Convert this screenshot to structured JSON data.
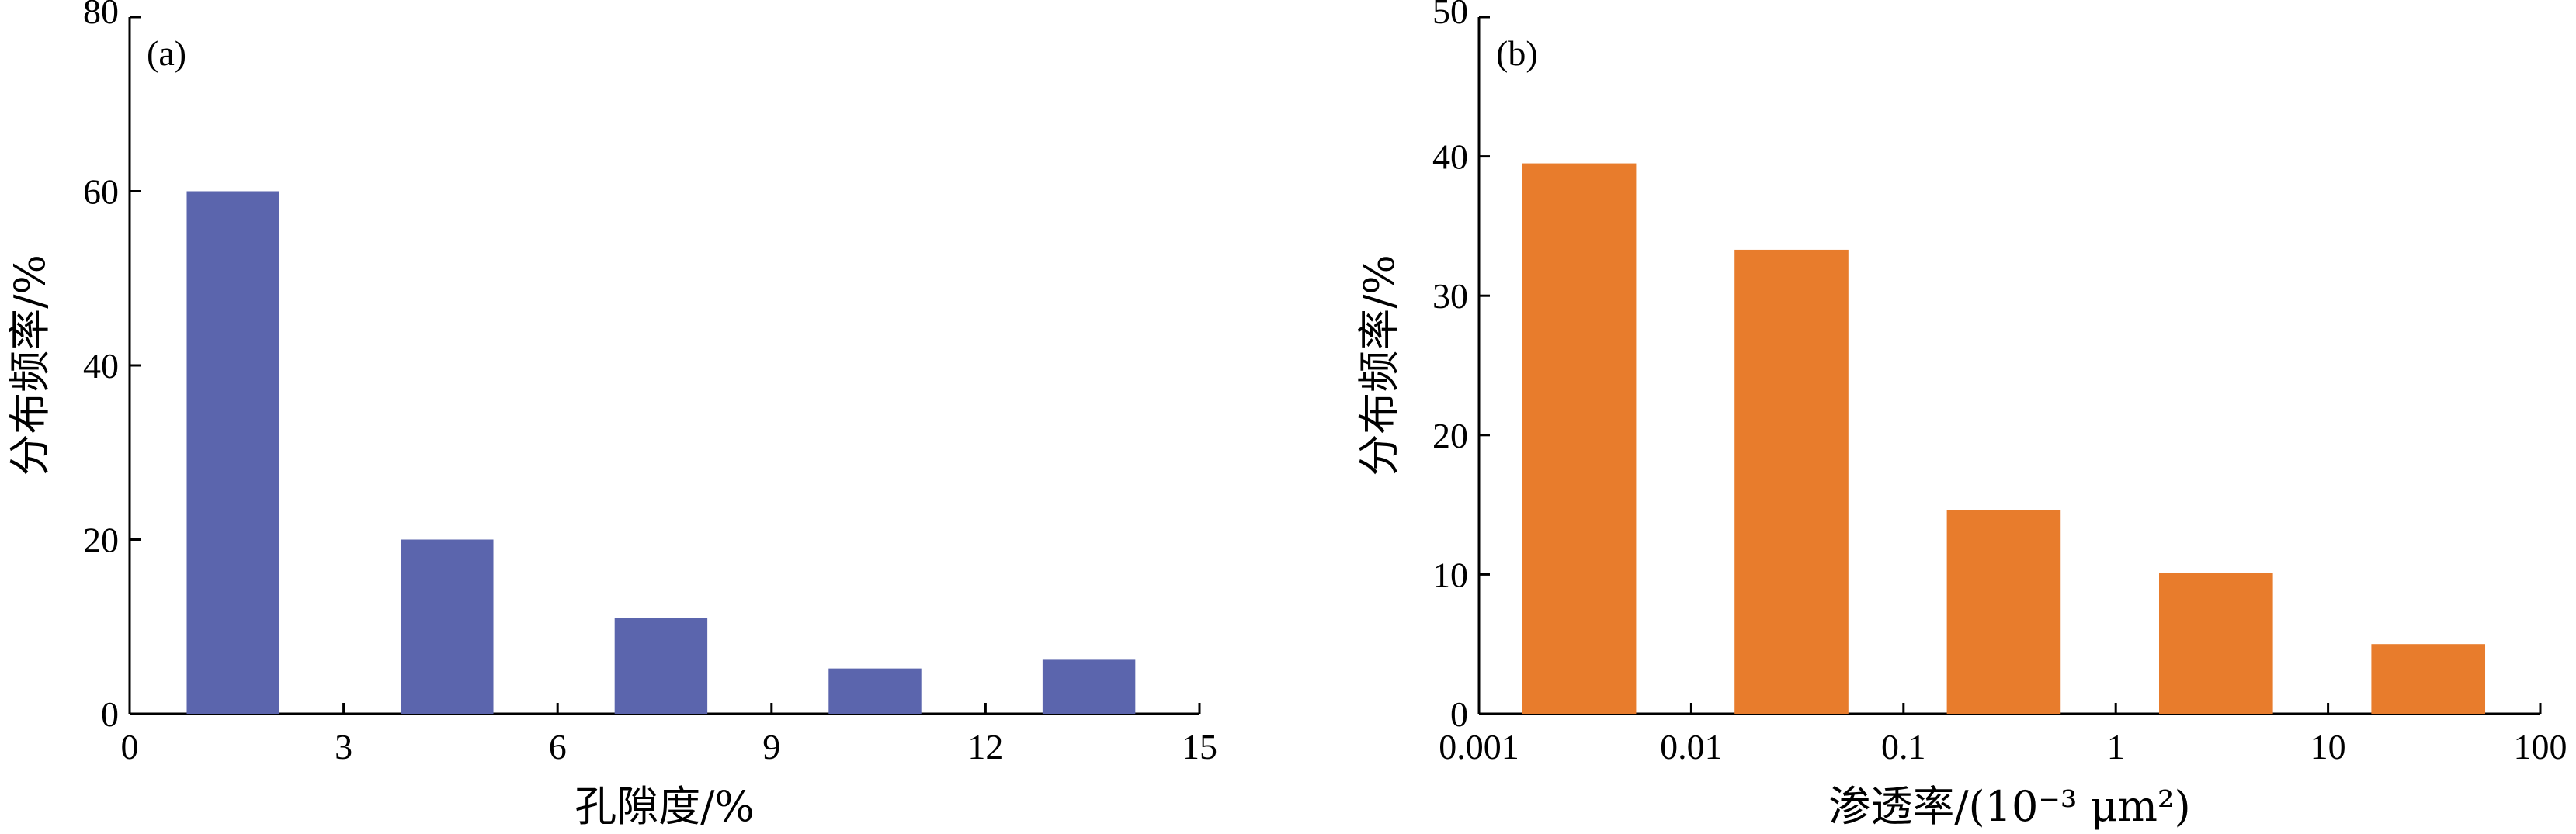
{
  "chart_data": [
    {
      "type": "bar",
      "panel_label": "(a)",
      "xlabel": "孔隙度/%",
      "ylabel": "分布频率/%",
      "xlim": [
        0,
        15
      ],
      "ylim": [
        0,
        80
      ],
      "x_ticks": [
        0,
        3,
        6,
        9,
        12,
        15
      ],
      "y_ticks": [
        0,
        20,
        40,
        60,
        80
      ],
      "bars": [
        {
          "x_start": 0.8,
          "x_end": 2.1,
          "value": 60
        },
        {
          "x_start": 3.8,
          "x_end": 5.1,
          "value": 20
        },
        {
          "x_start": 6.8,
          "x_end": 8.1,
          "value": 11
        },
        {
          "x_start": 9.8,
          "x_end": 11.1,
          "value": 5.2
        },
        {
          "x_start": 12.8,
          "x_end": 14.1,
          "value": 6.2
        }
      ],
      "color": "#5b65ad",
      "grid": false
    },
    {
      "type": "bar",
      "panel_label": "(b)",
      "xlabel": "渗透率/(10⁻³ μm²)",
      "ylabel": "分布频率/%",
      "x_scale": "log",
      "xlim": [
        0.001,
        100
      ],
      "ylim": [
        0,
        50
      ],
      "x_ticks": [
        0.001,
        0.01,
        0.1,
        1,
        10,
        100
      ],
      "x_tick_labels": [
        "0.001",
        "0.01",
        "0.1",
        "1",
        "10",
        "100"
      ],
      "y_ticks": [
        0,
        10,
        20,
        30,
        40,
        50
      ],
      "bars": [
        {
          "x_start": 0.0016,
          "x_end": 0.0055,
          "value": 39.5
        },
        {
          "x_start": 0.016,
          "x_end": 0.055,
          "value": 33.3
        },
        {
          "x_start": 0.16,
          "x_end": 0.55,
          "value": 14.6
        },
        {
          "x_start": 1.6,
          "x_end": 5.5,
          "value": 10.1
        },
        {
          "x_start": 16,
          "x_end": 55,
          "value": 5
        }
      ],
      "color": "#e87c2c",
      "grid": false
    }
  ]
}
